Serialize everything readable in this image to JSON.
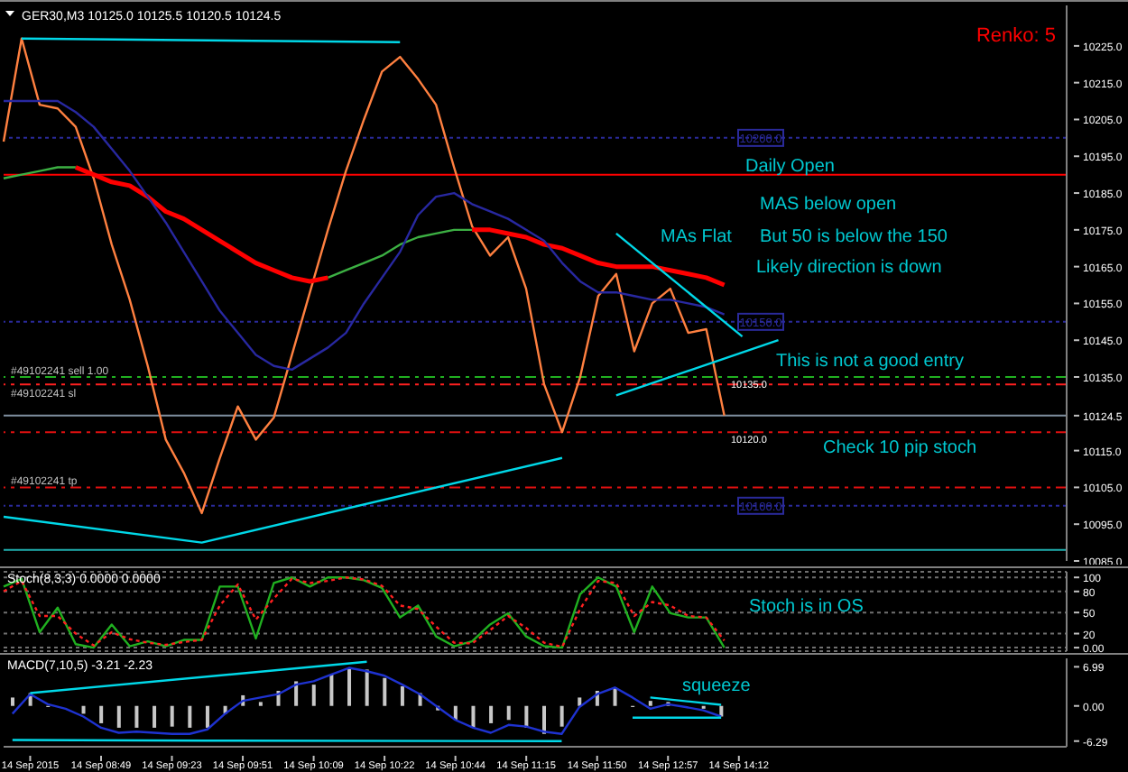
{
  "chart_data": [
    {
      "type": "line",
      "title": "GER30,M3  10125.0 10125.5 10120.5 10124.5",
      "subtitle": "Renko: 5",
      "categories": [
        null,
        null,
        null,
        null,
        null,
        null,
        null,
        null,
        null,
        null,
        null,
        null,
        null,
        null,
        null,
        null,
        null,
        null,
        null,
        null,
        null,
        null,
        null,
        null,
        null,
        null,
        null,
        null,
        null,
        null,
        null,
        null,
        null,
        null,
        null,
        null,
        null,
        null,
        null,
        null,
        null,
        null,
        null,
        null,
        null,
        null,
        null,
        null,
        null,
        null,
        null,
        null,
        null,
        null,
        null,
        null,
        null,
        null,
        null,
        null
      ],
      "tick_labels": "y",
      "marker": "none",
      "ylim": [
        10085,
        10236
      ],
      "yticks": [
        {
          "value": 10225,
          "label": "10225.0"
        },
        {
          "value": 10215,
          "label": "10215.0"
        },
        {
          "value": 10205,
          "label": "10205.0"
        },
        {
          "value": 10195,
          "label": "10195.0"
        },
        {
          "value": 10185,
          "label": "10185.0"
        },
        {
          "value": 10175,
          "label": "10175.0"
        },
        {
          "value": 10165,
          "label": "10165.0"
        },
        {
          "value": 10155,
          "label": "10155.0"
        },
        {
          "value": 10145,
          "label": "10145.0"
        },
        {
          "value": 10135,
          "label": "10135.0"
        },
        {
          "value": 10124.5,
          "label": "10124.5"
        },
        {
          "value": 10115,
          "label": "10115.0"
        },
        {
          "value": 10105,
          "label": "10105.0"
        },
        {
          "value": 10095,
          "label": "10095.0"
        },
        {
          "value": 10085,
          "label": "10085.0"
        }
      ],
      "series": [
        {
          "color": "#ff8040",
          "values": [
            10199,
            10227,
            10209,
            10208,
            10203,
            10189,
            10171,
            10156,
            10138,
            10118,
            10109,
            10098,
            10113,
            10127,
            10118,
            10124,
            10141,
            10158,
            10175,
            10191,
            10205,
            10218,
            10222,
            10216,
            10209,
            10192,
            10176,
            10168,
            10173,
            10159,
            10133,
            10120,
            10135,
            10157,
            10163,
            10142,
            10155,
            10159,
            10147,
            10148,
            10124.5,
            null,
            null,
            null,
            null,
            null,
            null,
            null,
            null,
            null,
            null,
            null,
            null,
            null,
            null,
            null,
            null,
            null,
            null,
            null
          ]
        },
        {
          "color": "#3cb043",
          "values": [
            10189,
            10190,
            10191,
            10192,
            10192,
            null,
            null,
            null,
            null,
            null,
            null,
            null,
            null,
            null,
            null,
            null,
            null,
            null,
            10162,
            10164,
            10166,
            10168,
            10171,
            10173,
            10174,
            10175,
            10175,
            null,
            null,
            null,
            null,
            null,
            null,
            null,
            null,
            null,
            null,
            null,
            null,
            null,
            null,
            null,
            null,
            null,
            null,
            null,
            null,
            null,
            null,
            null,
            null,
            null,
            null,
            null,
            null,
            null,
            null,
            null,
            null,
            null
          ]
        },
        {
          "color": "#ff0000",
          "values": [
            null,
            null,
            null,
            null,
            10192,
            10190,
            10188,
            10187,
            10184,
            10180,
            10178,
            10175,
            10172,
            10169,
            10166,
            10164,
            10162,
            10161,
            10162,
            null,
            null,
            null,
            null,
            null,
            null,
            null,
            10175,
            10175,
            10174,
            10173,
            10171,
            10170,
            10168,
            10166,
            10165,
            10165,
            10165,
            10164,
            10163,
            10162,
            10160,
            null,
            null,
            null,
            null,
            null,
            null,
            null,
            null,
            null,
            null,
            null,
            null,
            null,
            null,
            null,
            null,
            null,
            null,
            null
          ]
        },
        {
          "color": "#2828a0",
          "values": [
            10210,
            10210,
            10210,
            10210,
            10207,
            10203,
            10197,
            10191,
            10184,
            10177,
            10169,
            10161,
            10153,
            10147,
            10141,
            10138,
            10137,
            10140,
            10143,
            10147,
            10155,
            10162,
            10169,
            10179,
            10184,
            10185,
            10182,
            10180,
            10178,
            10175,
            10172,
            10166,
            10161,
            10158,
            10158,
            10157,
            10156,
            10156,
            10155,
            10154,
            10152,
            null,
            null,
            null,
            null,
            null,
            null,
            null,
            null,
            null,
            null,
            null,
            null,
            null,
            null,
            null,
            null,
            null,
            null,
            null
          ]
        },
        {
          "color": "#00d8e8",
          "values": [
            null,
            10227,
            null,
            null,
            null,
            null,
            null,
            null,
            null,
            null,
            null,
            null,
            null,
            null,
            null,
            null,
            null,
            null,
            null,
            null,
            null,
            null,
            10226,
            null,
            null,
            null,
            null,
            null,
            null,
            null,
            null,
            null,
            null,
            null,
            null,
            null,
            null,
            null,
            null,
            null,
            null,
            null,
            null,
            null,
            null,
            null,
            null,
            null,
            null,
            null,
            null,
            null,
            null,
            null,
            null,
            null,
            null,
            null,
            null,
            null
          ]
        },
        {
          "color": "#00d8e8",
          "values": [
            10097,
            null,
            null,
            null,
            null,
            null,
            null,
            null,
            null,
            null,
            null,
            10090,
            null,
            null,
            null,
            null,
            null,
            null,
            null,
            null,
            null,
            null,
            null,
            null,
            null,
            null,
            null,
            null,
            null,
            null,
            null,
            10113,
            null,
            null,
            null,
            null,
            null,
            null,
            null,
            null,
            null,
            null,
            null,
            null,
            null,
            null,
            null,
            null,
            null,
            null,
            null,
            null,
            null,
            null,
            null,
            null,
            null,
            null,
            null,
            null
          ]
        },
        {
          "color": "#00d8e8",
          "values": [
            null,
            null,
            null,
            null,
            null,
            null,
            null,
            null,
            null,
            null,
            null,
            null,
            null,
            null,
            null,
            null,
            null,
            null,
            null,
            null,
            null,
            null,
            null,
            null,
            null,
            null,
            null,
            null,
            null,
            null,
            null,
            null,
            null,
            null,
            10174,
            null,
            null,
            null,
            null,
            null,
            null,
            10146,
            null,
            null,
            null,
            null,
            null,
            null,
            null,
            null,
            null,
            null,
            null,
            null,
            null,
            null,
            null,
            null,
            null,
            null
          ]
        },
        {
          "color": "#00d8e8",
          "values": [
            null,
            null,
            null,
            null,
            null,
            null,
            null,
            null,
            null,
            null,
            null,
            null,
            null,
            null,
            null,
            null,
            null,
            null,
            null,
            null,
            null,
            null,
            null,
            null,
            null,
            null,
            null,
            null,
            null,
            null,
            null,
            null,
            null,
            null,
            10130,
            null,
            null,
            null,
            null,
            null,
            null,
            null,
            null,
            10145,
            null,
            null,
            null,
            null,
            null,
            null,
            null,
            null,
            null,
            null,
            null,
            null,
            null,
            null,
            null,
            null
          ]
        }
      ],
      "ref_lines": [
        {
          "axis": "y",
          "value": 10200,
          "label": "10200.0",
          "color": "#2a2a9a",
          "line_style": "dotted"
        },
        {
          "axis": "y",
          "value": 10150,
          "label": "10150.0",
          "color": "#2a2a9a",
          "line_style": "dotted"
        },
        {
          "axis": "y",
          "value": 10100,
          "label": "10100.0",
          "color": "#2a2a9a",
          "line_style": "dotted"
        },
        {
          "axis": "y",
          "value": 10190,
          "color": "#ff0000",
          "line_style": "solid"
        },
        {
          "axis": "y",
          "value": 10135,
          "label": "#49102241 sell 1.00",
          "color": "#20b020",
          "line_style": "dashed"
        },
        {
          "axis": "y",
          "value": 10133,
          "label": "#49102241 sl",
          "color": "#ff2020",
          "line_style": "dashed"
        },
        {
          "axis": "y",
          "value": 10105,
          "label": "#49102241 tp",
          "color": "#e01010",
          "line_style": "dashed"
        },
        {
          "axis": "y",
          "value": 10120,
          "color": "#e01010",
          "line_style": "dashed"
        },
        {
          "axis": "y",
          "value": 10124.5,
          "color": "#8090a0",
          "line_style": "solid"
        },
        {
          "axis": "y",
          "value": 10088,
          "color": "#20b0b0",
          "line_style": "solid"
        }
      ],
      "annotations": [
        "Daily Open",
        "MAS below open",
        "But 50 is below the 150",
        "Likely direction is down",
        "MAs Flat",
        "This is not a good entry",
        "Check 10 pip stoch",
        {
          "text": "10135.0",
          "y": 10135
        },
        {
          "text": "10120.0",
          "y": 10120
        }
      ]
    },
    {
      "type": "line",
      "title": "Stoch(8,3,3) 0.0000 0.0000",
      "categories": [
        null,
        null,
        null,
        null,
        null,
        null,
        null,
        null,
        null,
        null,
        null,
        null,
        null,
        null,
        null,
        null,
        null,
        null,
        null,
        null,
        null,
        null,
        null,
        null,
        null,
        null,
        null,
        null,
        null,
        null,
        null,
        null,
        null,
        null,
        null,
        null,
        null,
        null,
        null,
        null,
        null,
        null,
        null,
        null,
        null,
        null,
        null,
        null,
        null,
        null,
        null,
        null,
        null,
        null,
        null,
        null,
        null,
        null,
        null,
        null
      ],
      "tick_labels": "y",
      "marker": "none",
      "grid": "y",
      "ylim": [
        -5,
        108
      ],
      "yticks": [
        {
          "value": 100,
          "label": "100"
        },
        80,
        50,
        20,
        {
          "value": 0,
          "label": "0.00"
        }
      ],
      "series": [
        {
          "color": "#20b020",
          "values": [
            87,
            98,
            22,
            57,
            5,
            0,
            33,
            2,
            9,
            2,
            11,
            11,
            87,
            87,
            13,
            92,
            100,
            87,
            100,
            100,
            96,
            85,
            43,
            60,
            16,
            2,
            9,
            33,
            49,
            16,
            2,
            0,
            76,
            100,
            87,
            22,
            87,
            49,
            43,
            43,
            0,
            null,
            null,
            null,
            null,
            null,
            null,
            null,
            null,
            null,
            null,
            null,
            null,
            null,
            null,
            null,
            null,
            null,
            null,
            null
          ]
        },
        {
          "color": "#ff2020",
          "line_style": "dotted",
          "values": [
            80,
            95,
            45,
            45,
            20,
            3,
            22,
            12,
            7,
            4,
            8,
            11,
            60,
            90,
            40,
            70,
            98,
            92,
            95,
            100,
            97,
            88,
            60,
            55,
            30,
            7,
            6,
            25,
            45,
            28,
            7,
            1,
            55,
            95,
            92,
            45,
            65,
            60,
            45,
            43,
            10,
            null,
            null,
            null,
            null,
            null,
            null,
            null,
            null,
            null,
            null,
            null,
            null,
            null,
            null,
            null,
            null,
            null,
            null,
            null
          ]
        }
      ],
      "annotations": [
        "Stoch is in OS"
      ]
    },
    {
      "type": "bar",
      "title": "MACD(7,10,5) -3.21 -2.23",
      "categories": [
        null,
        "14 Sep 2015",
        null,
        null,
        null,
        "14 Sep 08:49",
        null,
        null,
        null,
        "14 Sep 09:23",
        null,
        null,
        null,
        "14 Sep 09:51",
        null,
        null,
        null,
        "14 Sep 10:09",
        null,
        null,
        null,
        "14 Sep 10:22",
        null,
        null,
        null,
        "14 Sep 10:44",
        null,
        null,
        null,
        "14 Sep 11:15",
        null,
        null,
        null,
        "14 Sep 11:50",
        null,
        null,
        null,
        "14 Sep 12:57",
        null,
        null,
        null,
        "14 Sep 14:12",
        null,
        null,
        null,
        null,
        null,
        null,
        null,
        null,
        null,
        null,
        null,
        null,
        null,
        null,
        null,
        null,
        null,
        null
      ],
      "marker": "none",
      "ylim": [
        -7.3,
        8.5
      ],
      "yticks": [
        6.99,
        {
          "value": 0,
          "label": "0.00"
        },
        -6.29
      ],
      "series": [
        {
          "color": "#c8c8c8",
          "values": [
            1.5,
            2.3,
            -0.2,
            0,
            -1.4,
            -3.1,
            -3.9,
            -3.9,
            -3.9,
            -3.7,
            -3.9,
            -3.9,
            -1.4,
            1.9,
            0.7,
            2.7,
            4.4,
            3.8,
            5.6,
            6.8,
            6.5,
            5.0,
            3.5,
            2.3,
            -0.8,
            -2.5,
            -3.9,
            -3.1,
            -2.5,
            -3.9,
            -5.0,
            -3.7,
            1.5,
            2.7,
            3.3,
            -0.2,
            0.9,
            0.7,
            0,
            -0.5,
            -1.9,
            null,
            null,
            null,
            null,
            null,
            null,
            null,
            null,
            null,
            null,
            null,
            null,
            null,
            null,
            null,
            null,
            null,
            null,
            null
          ]
        },
        {
          "type": "line",
          "color": "#1e32d0",
          "values": [
            -1.4,
            2.1,
            0.3,
            -0.5,
            -1.9,
            -3.9,
            -4.8,
            -4.6,
            -4.8,
            -5.0,
            -5.0,
            -4.2,
            -1.4,
            0.9,
            1.5,
            2.1,
            3.8,
            4.4,
            5.6,
            6.8,
            6.2,
            5.4,
            3.8,
            2.1,
            -0.2,
            -2.5,
            -3.9,
            -4.8,
            -3.4,
            -3.7,
            -4.6,
            -5.0,
            -0.2,
            2.1,
            3.3,
            1.5,
            -0.5,
            0.3,
            -0.2,
            -0.8,
            -1.9,
            null,
            null,
            null,
            null,
            null,
            null,
            null,
            null,
            null,
            null,
            null,
            null,
            null,
            null,
            null,
            null,
            null,
            null,
            null
          ]
        },
        {
          "type": "line",
          "color": "#00d8e8",
          "values": [
            null,
            2.3,
            null,
            null,
            null,
            null,
            null,
            null,
            null,
            null,
            null,
            null,
            null,
            null,
            null,
            null,
            null,
            null,
            null,
            null,
            7.9,
            null,
            null,
            null,
            null,
            null,
            null,
            null,
            null,
            null,
            null,
            null,
            null,
            null,
            null,
            null,
            null,
            null,
            null,
            null,
            null,
            null,
            null,
            null,
            null,
            null,
            null,
            null,
            null,
            null,
            null,
            null,
            null,
            null,
            null,
            null,
            null,
            null,
            null,
            null
          ]
        },
        {
          "type": "line",
          "color": "#00d8e8",
          "values": [
            -6.1,
            null,
            null,
            null,
            null,
            null,
            null,
            null,
            null,
            null,
            null,
            -6.2,
            null,
            null,
            null,
            null,
            null,
            null,
            null,
            null,
            null,
            null,
            null,
            null,
            null,
            null,
            null,
            null,
            null,
            null,
            null,
            -6.3,
            null,
            null,
            null,
            null,
            null,
            null,
            null,
            null,
            null,
            null,
            null,
            null,
            null,
            null,
            null,
            null,
            null,
            null,
            null,
            null,
            null,
            null,
            null,
            null,
            null,
            null,
            null,
            null
          ]
        },
        {
          "type": "line",
          "color": "#00d8e8",
          "values": [
            null,
            null,
            null,
            null,
            null,
            null,
            null,
            null,
            null,
            null,
            null,
            null,
            null,
            null,
            null,
            null,
            null,
            null,
            null,
            null,
            null,
            null,
            null,
            null,
            null,
            null,
            null,
            null,
            null,
            null,
            null,
            null,
            null,
            null,
            null,
            null,
            1.5,
            null,
            null,
            null,
            0.2,
            null,
            null,
            null,
            null,
            null,
            null,
            null,
            null,
            null,
            null,
            null,
            null,
            null,
            null,
            null,
            null,
            null,
            null,
            null
          ]
        },
        {
          "type": "line",
          "color": "#00d8e8",
          "values": [
            null,
            null,
            null,
            null,
            null,
            null,
            null,
            null,
            null,
            null,
            null,
            null,
            null,
            null,
            null,
            null,
            null,
            null,
            null,
            null,
            null,
            null,
            null,
            null,
            null,
            null,
            null,
            null,
            null,
            null,
            null,
            null,
            null,
            null,
            null,
            -2.1,
            null,
            null,
            null,
            null,
            -2.1,
            null,
            null,
            null,
            null,
            null,
            null,
            null,
            null,
            null,
            null,
            null,
            null,
            null,
            null,
            null,
            null,
            null,
            null,
            null
          ]
        }
      ],
      "annotations": [
        "squeeze"
      ]
    }
  ]
}
